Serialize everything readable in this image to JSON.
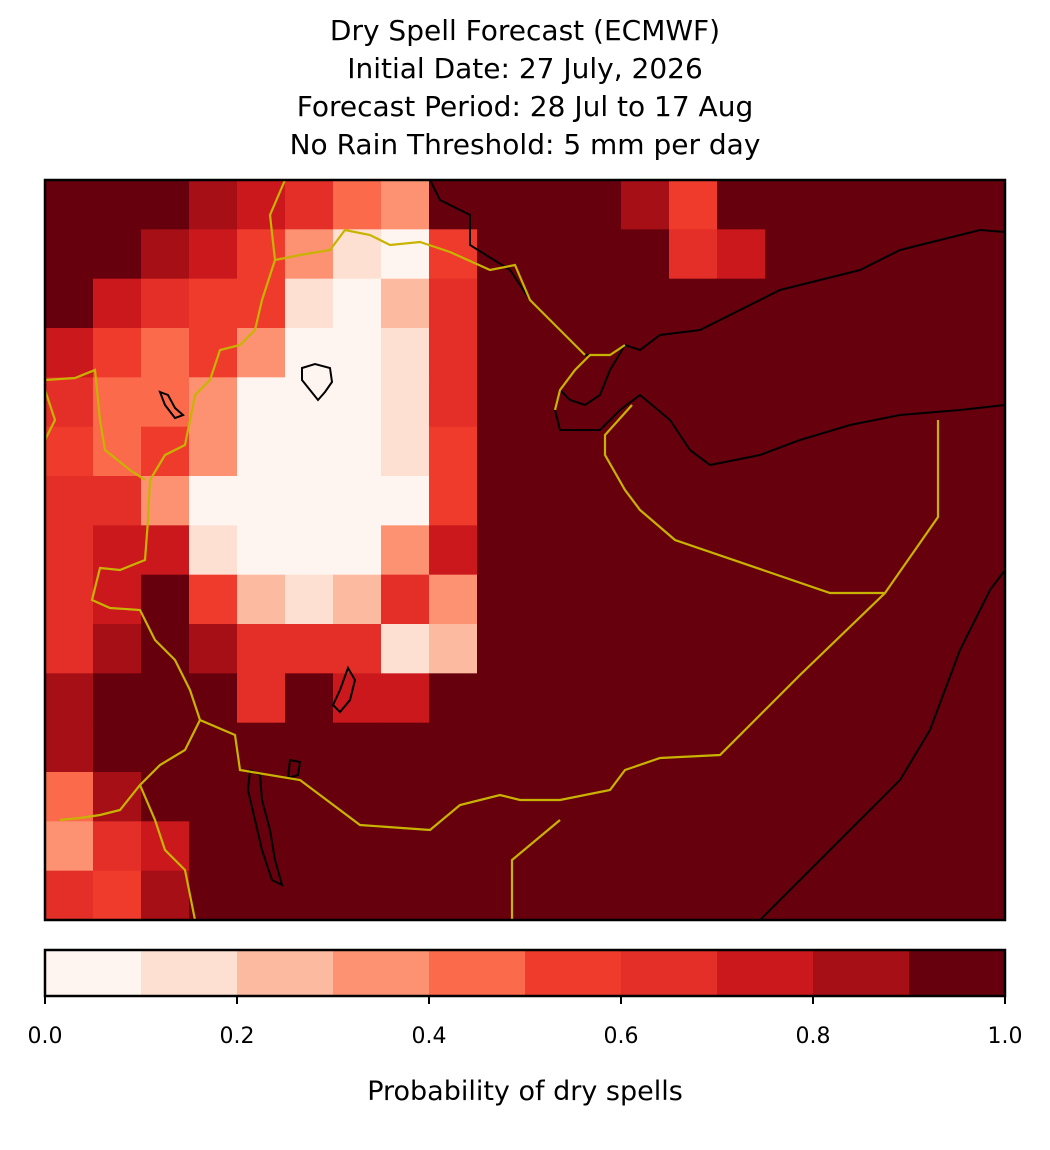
{
  "chart_data": {
    "type": "heatmap",
    "title": [
      "Dry Spell Forecast (ECMWF)",
      "Initial Date: 27 July, 2026",
      "Forecast Period: 28 Jul to 17 Aug",
      "No Rain Threshold: 5 mm per day"
    ],
    "values": [
      [
        0.95,
        0.95,
        0.95,
        0.85,
        0.7,
        0.6,
        0.4,
        0.3,
        0.9,
        0.95,
        0.95,
        0.95,
        0.8,
        0.5,
        0.95,
        0.95,
        0.95,
        0.95,
        0.95,
        0.95
      ],
      [
        0.95,
        0.9,
        0.8,
        0.7,
        0.5,
        0.3,
        0.1,
        0.05,
        0.5,
        0.95,
        0.95,
        0.95,
        0.95,
        0.6,
        0.75,
        0.95,
        0.95,
        0.95,
        0.95,
        0.95
      ],
      [
        0.9,
        0.75,
        0.65,
        0.55,
        0.5,
        0.1,
        0.05,
        0.2,
        0.6,
        0.95,
        0.95,
        0.95,
        0.95,
        0.95,
        0.95,
        0.95,
        0.95,
        0.95,
        0.95,
        0.95
      ],
      [
        0.7,
        0.55,
        0.45,
        0.5,
        0.3,
        0.05,
        0.05,
        0.15,
        0.6,
        0.95,
        0.95,
        0.95,
        0.95,
        0.95,
        0.95,
        0.95,
        0.95,
        0.95,
        0.95,
        0.95
      ],
      [
        0.6,
        0.4,
        0.4,
        0.3,
        0.05,
        0.05,
        0.05,
        0.1,
        0.6,
        0.95,
        0.95,
        0.95,
        0.95,
        0.95,
        0.95,
        0.95,
        0.95,
        0.95,
        0.95,
        0.95
      ],
      [
        0.55,
        0.45,
        0.5,
        0.3,
        0.05,
        0.05,
        0.05,
        0.1,
        0.55,
        0.9,
        0.95,
        0.95,
        0.95,
        0.95,
        0.95,
        0.95,
        0.95,
        0.95,
        0.95,
        0.95
      ],
      [
        0.6,
        0.6,
        0.3,
        0.05,
        0.05,
        0.05,
        0.05,
        0.05,
        0.5,
        0.95,
        0.95,
        0.95,
        0.95,
        0.95,
        0.95,
        0.95,
        0.95,
        0.95,
        0.95,
        0.95
      ],
      [
        0.65,
        0.7,
        0.7,
        0.1,
        0.05,
        0.05,
        0.05,
        0.3,
        0.75,
        0.9,
        0.95,
        0.95,
        0.95,
        0.95,
        0.95,
        0.95,
        0.95,
        0.95,
        0.95,
        0.95
      ],
      [
        0.65,
        0.7,
        0.9,
        0.5,
        0.2,
        0.15,
        0.2,
        0.6,
        0.3,
        0.9,
        0.95,
        0.95,
        0.95,
        0.95,
        0.95,
        0.95,
        0.95,
        0.95,
        0.95,
        0.95
      ],
      [
        0.65,
        0.85,
        0.95,
        0.8,
        0.6,
        0.6,
        0.6,
        0.1,
        0.2,
        0.95,
        0.95,
        0.95,
        0.95,
        0.95,
        0.95,
        0.95,
        0.95,
        0.95,
        0.95,
        0.95
      ],
      [
        0.8,
        0.9,
        0.95,
        0.95,
        0.6,
        0.9,
        0.7,
        0.7,
        0.95,
        0.95,
        0.95,
        0.95,
        0.95,
        0.95,
        0.95,
        0.95,
        0.95,
        0.95,
        0.95,
        0.95
      ],
      [
        0.85,
        0.95,
        0.95,
        0.95,
        0.95,
        0.95,
        0.95,
        0.95,
        0.95,
        0.95,
        0.95,
        0.95,
        0.95,
        0.95,
        0.95,
        0.95,
        0.95,
        0.95,
        0.95,
        0.95
      ],
      [
        0.4,
        0.8,
        0.95,
        0.95,
        0.95,
        0.95,
        0.95,
        0.95,
        0.95,
        0.95,
        0.95,
        0.95,
        0.95,
        0.95,
        0.95,
        0.95,
        0.95,
        0.95,
        0.95,
        0.95
      ],
      [
        0.3,
        0.6,
        0.75,
        0.95,
        0.95,
        0.95,
        0.95,
        0.95,
        0.95,
        0.95,
        0.95,
        0.95,
        0.95,
        0.95,
        0.95,
        0.95,
        0.95,
        0.95,
        0.95,
        0.95
      ],
      [
        0.6,
        0.55,
        0.8,
        0.95,
        0.95,
        0.95,
        0.95,
        0.95,
        0.95,
        0.95,
        0.95,
        0.95,
        0.95,
        0.95,
        0.95,
        0.95,
        0.95,
        0.95,
        0.95,
        0.95
      ]
    ],
    "colorbar": {
      "label": "Probability of dry spells",
      "lim": [
        0,
        1
      ],
      "levels": [
        0,
        0.1,
        0.2,
        0.3,
        0.4,
        0.5,
        0.6,
        0.7,
        0.8,
        0.9,
        1
      ],
      "colors": [
        "#fff5f0",
        "#fee0d2",
        "#fcbba1",
        "#fc9272",
        "#fb6a4a",
        "#ef3b2c",
        "#e32f27",
        "#cb181d",
        "#a50f15",
        "#67000d"
      ],
      "ticks": [
        {
          "value": 0,
          "label": "0.0"
        },
        0.2,
        0.4,
        0.6,
        0.8,
        {
          "value": 1,
          "label": "1.0"
        }
      ]
    }
  }
}
